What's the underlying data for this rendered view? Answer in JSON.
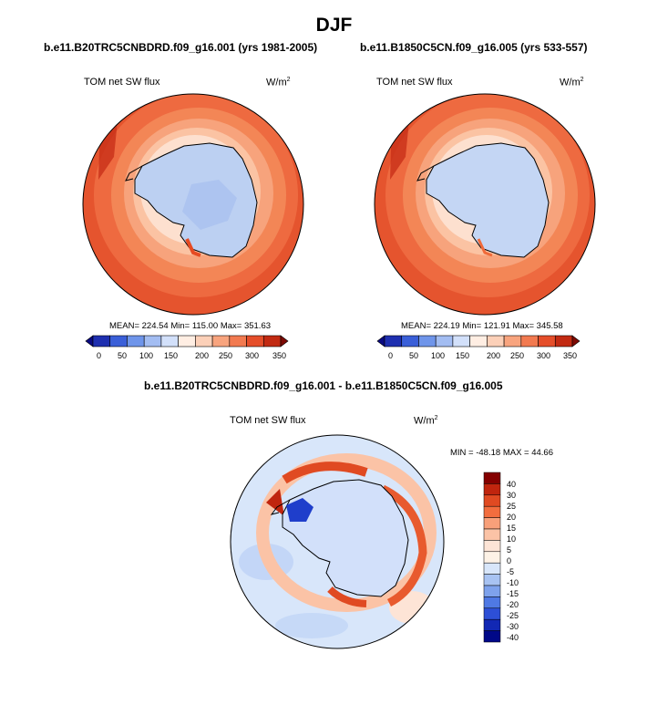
{
  "title": "DJF",
  "panels": [
    {
      "name": "b.e11.B20TRC5CNBDRD.f09_g16.001 (yrs 1981-2005)",
      "variable": "TOM net SW flux",
      "units_base": "W/m",
      "units_exp": "2",
      "stats": "MEAN= 224.54  Min= 115.00  Max= 351.63",
      "colorbar_ticks": [
        "0",
        "50",
        "100",
        "150",
        "200",
        "250",
        "300",
        "350"
      ]
    },
    {
      "name": "b.e11.B1850C5CN.f09_g16.005 (yrs 533-557)",
      "variable": "TOM net SW flux",
      "units_base": "W/m",
      "units_exp": "2",
      "stats": "MEAN= 224.19  Min= 121.91  Max= 345.58",
      "colorbar_ticks": [
        "0",
        "50",
        "100",
        "150",
        "200",
        "250",
        "300",
        "350"
      ]
    }
  ],
  "difference": {
    "name": "b.e11.B20TRC5CNBDRD.f09_g16.001 - b.e11.B1850C5CN.f09_g16.005",
    "variable": "TOM net SW flux",
    "units_base": "W/m",
    "units_exp": "2",
    "stats": "MIN = -48.18 MAX =  44.66",
    "colorbar_ticks": [
      "40",
      "30",
      "25",
      "20",
      "15",
      "10",
      "5",
      "0",
      "-5",
      "-10",
      "-15",
      "-20",
      "-25",
      "-30",
      "-40"
    ]
  },
  "colors": {
    "sequential": [
      "#0a0a82",
      "#1e2fb0",
      "#3a5fd8",
      "#6f95ea",
      "#a3bdf2",
      "#d2e0fa",
      "#ffeee3",
      "#fcd0b8",
      "#f8a47e",
      "#f27a50",
      "#e54e2a",
      "#c22a12",
      "#7d0a04"
    ],
    "diverging": [
      "#840000",
      "#c0250e",
      "#e04a22",
      "#f26d3e",
      "#f8a07a",
      "#fbc3a6",
      "#fde4d6",
      "#fdf2e6",
      "#d8e6fa",
      "#a8c3f2",
      "#7ea2ec",
      "#4f79e4",
      "#2d4fd6",
      "#1228b4",
      "#000888"
    ]
  }
}
